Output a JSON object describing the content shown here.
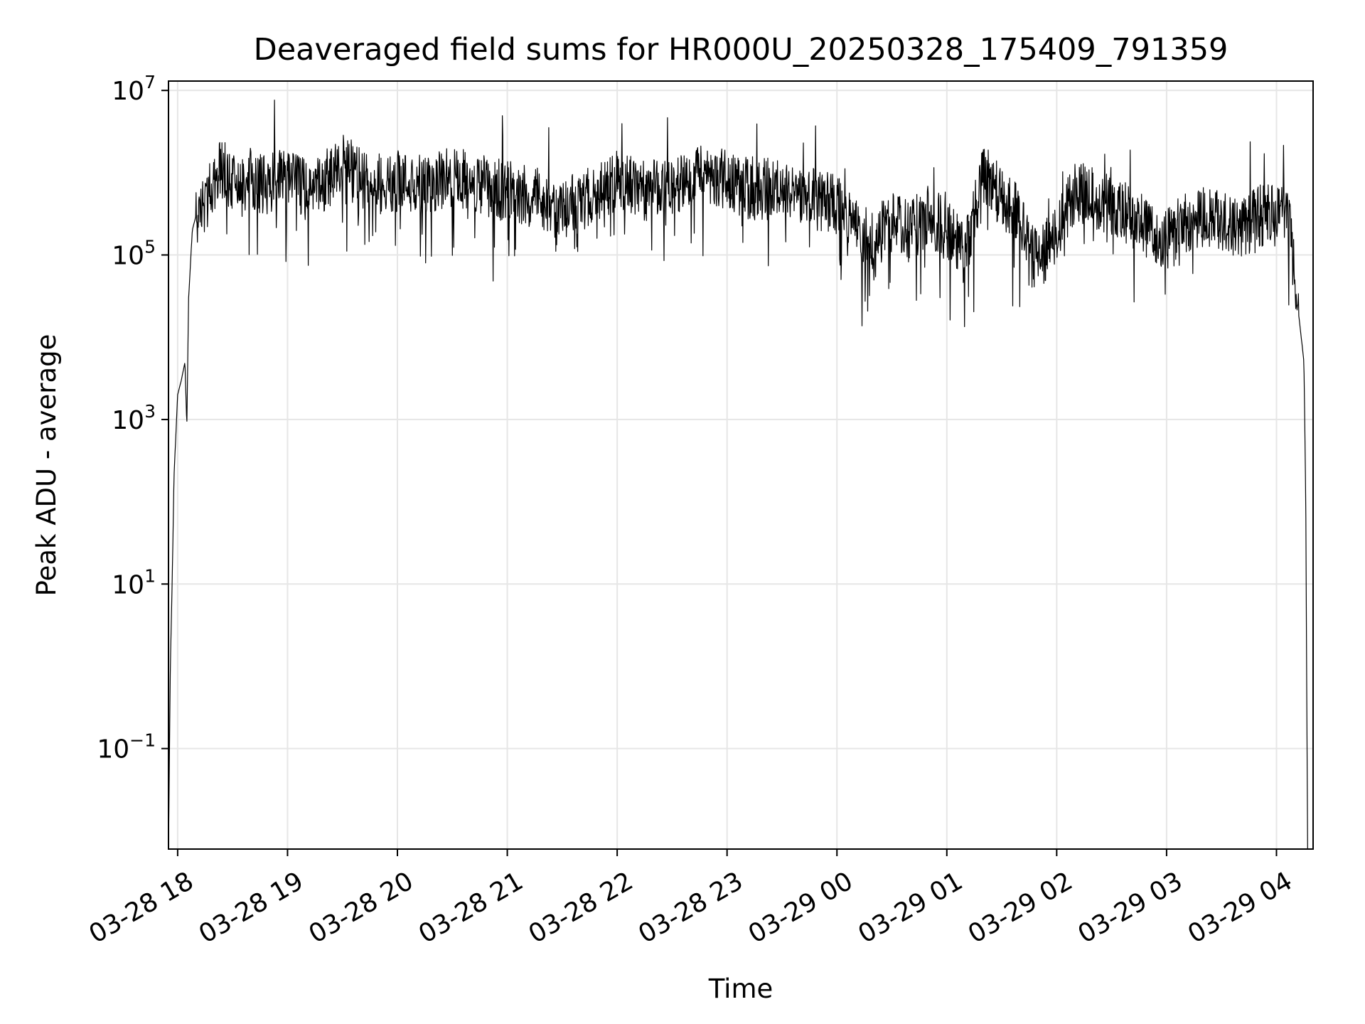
{
  "chart_data": {
    "type": "line",
    "title": "Deaveraged field sums for HR000U_20250328_175409_791359",
    "xlabel": "Time",
    "ylabel": "Peak ADU - average",
    "yscale": "log",
    "ylim": [
      0.006,
      13000000
    ],
    "xlim": [
      "03-28 17:55",
      "03-29 04:20"
    ],
    "grid": true,
    "legend": "none",
    "line_color": "#000000",
    "x_ticks": [
      {
        "t": "03-28 18:00",
        "label": "03-28 18"
      },
      {
        "t": "03-28 19:00",
        "label": "03-28 19"
      },
      {
        "t": "03-28 20:00",
        "label": "03-28 20"
      },
      {
        "t": "03-28 21:00",
        "label": "03-28 21"
      },
      {
        "t": "03-28 22:00",
        "label": "03-28 22"
      },
      {
        "t": "03-28 23:00",
        "label": "03-28 23"
      },
      {
        "t": "03-29 00:00",
        "label": "03-29 00"
      },
      {
        "t": "03-29 01:00",
        "label": "03-29 01"
      },
      {
        "t": "03-29 02:00",
        "label": "03-29 02"
      },
      {
        "t": "03-29 03:00",
        "label": "03-29 03"
      },
      {
        "t": "03-29 04:00",
        "label": "03-29 04"
      }
    ],
    "y_ticks": [
      {
        "value": 0.1,
        "base": "10",
        "exp": "−1"
      },
      {
        "value": 10,
        "base": "10",
        "exp": "1"
      },
      {
        "value": 1000,
        "base": "10",
        "exp": "3"
      },
      {
        "value": 100000,
        "base": "10",
        "exp": "5"
      },
      {
        "value": 10000000,
        "base": "10",
        "exp": "7"
      }
    ],
    "series": [
      {
        "x": [
          "03-28 17:55",
          "03-28 17:56",
          "03-28 17:57",
          "03-28 17:58",
          "03-28 18:00",
          "03-28 18:02",
          "03-28 18:04",
          "03-28 18:05",
          "03-28 18:06",
          "03-28 18:08",
          "03-28 18:10",
          "03-28 18:15",
          "03-28 18:20",
          "03-28 18:25",
          "03-28 18:30",
          "03-28 18:35",
          "03-28 18:40",
          "03-28 18:50",
          "03-28 19:00",
          "03-28 19:10",
          "03-28 19:20",
          "03-28 19:30",
          "03-28 19:45",
          "03-28 20:00",
          "03-28 20:15",
          "03-28 20:30",
          "03-28 20:45",
          "03-28 21:00",
          "03-28 21:15",
          "03-28 21:30",
          "03-28 21:45",
          "03-28 22:00",
          "03-28 22:15",
          "03-28 22:30",
          "03-28 22:45",
          "03-28 23:00",
          "03-28 23:15",
          "03-28 23:30",
          "03-28 23:45",
          "03-29 00:00",
          "03-29 00:10",
          "03-29 00:20",
          "03-29 00:30",
          "03-29 00:40",
          "03-29 00:50",
          "03-29 01:00",
          "03-29 01:10",
          "03-29 01:20",
          "03-29 01:30",
          "03-29 01:40",
          "03-29 01:50",
          "03-29 02:00",
          "03-29 02:10",
          "03-29 02:20",
          "03-29 02:30",
          "03-29 02:40",
          "03-29 02:50",
          "03-29 03:00",
          "03-29 03:10",
          "03-29 03:20",
          "03-29 03:30",
          "03-29 03:40",
          "03-29 03:50",
          "03-29 04:00",
          "03-29 04:05",
          "03-29 04:08",
          "03-29 04:10",
          "03-29 04:12",
          "03-29 04:14",
          "03-29 04:15",
          "03-29 04:16",
          "03-29 04:17"
        ],
        "y": [
          0.005,
          1,
          10,
          200,
          2000,
          3000,
          5000,
          800,
          30000,
          200000,
          300000,
          400000,
          800000,
          1200000,
          700000,
          600000,
          800000,
          700000,
          900000,
          600000,
          800000,
          1300000,
          700000,
          800000,
          700000,
          900000,
          700000,
          600000,
          500000,
          400000,
          500000,
          800000,
          600000,
          700000,
          1000000,
          800000,
          600000,
          700000,
          500000,
          400000,
          200000,
          150000,
          250000,
          200000,
          300000,
          200000,
          100000,
          1000000,
          500000,
          300000,
          80000,
          200000,
          600000,
          500000,
          400000,
          300000,
          200000,
          150000,
          250000,
          300000,
          250000,
          200000,
          300000,
          300000,
          400000,
          150000,
          60000,
          20000,
          8000,
          5000,
          100,
          0.005
        ]
      }
    ]
  }
}
